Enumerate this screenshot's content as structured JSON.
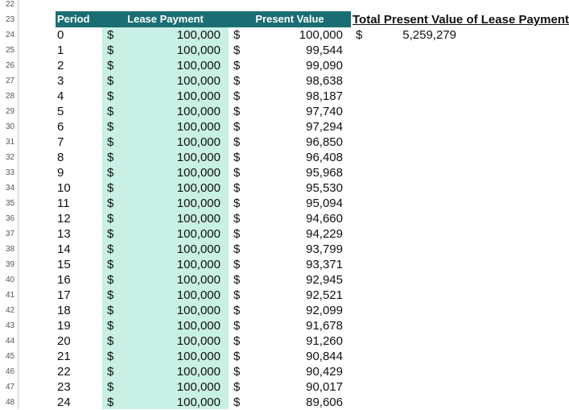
{
  "row_numbers": [
    "22",
    "23",
    "24",
    "25",
    "26",
    "27",
    "28",
    "29",
    "30",
    "31",
    "32",
    "33",
    "34",
    "35",
    "36",
    "37",
    "38",
    "39",
    "40",
    "41",
    "42",
    "43",
    "44",
    "45",
    "46",
    "47",
    "48"
  ],
  "headers": {
    "period": "Period",
    "lease": "Lease Payment",
    "pv": "Present Value"
  },
  "currency_symbol": "$",
  "rows": [
    {
      "period": "0",
      "lease": "100,000",
      "pv": "100,000"
    },
    {
      "period": "1",
      "lease": "100,000",
      "pv": "99,544"
    },
    {
      "period": "2",
      "lease": "100,000",
      "pv": "99,090"
    },
    {
      "period": "3",
      "lease": "100,000",
      "pv": "98,638"
    },
    {
      "period": "4",
      "lease": "100,000",
      "pv": "98,187"
    },
    {
      "period": "5",
      "lease": "100,000",
      "pv": "97,740"
    },
    {
      "period": "6",
      "lease": "100,000",
      "pv": "97,294"
    },
    {
      "period": "7",
      "lease": "100,000",
      "pv": "96,850"
    },
    {
      "period": "8",
      "lease": "100,000",
      "pv": "96,408"
    },
    {
      "period": "9",
      "lease": "100,000",
      "pv": "95,968"
    },
    {
      "period": "10",
      "lease": "100,000",
      "pv": "95,530"
    },
    {
      "period": "11",
      "lease": "100,000",
      "pv": "95,094"
    },
    {
      "period": "12",
      "lease": "100,000",
      "pv": "94,660"
    },
    {
      "period": "13",
      "lease": "100,000",
      "pv": "94,229"
    },
    {
      "period": "14",
      "lease": "100,000",
      "pv": "93,799"
    },
    {
      "period": "15",
      "lease": "100,000",
      "pv": "93,371"
    },
    {
      "period": "16",
      "lease": "100,000",
      "pv": "92,945"
    },
    {
      "period": "17",
      "lease": "100,000",
      "pv": "92,521"
    },
    {
      "period": "18",
      "lease": "100,000",
      "pv": "92,099"
    },
    {
      "period": "19",
      "lease": "100,000",
      "pv": "91,678"
    },
    {
      "period": "20",
      "lease": "100,000",
      "pv": "91,260"
    },
    {
      "period": "21",
      "lease": "100,000",
      "pv": "90,844"
    },
    {
      "period": "22",
      "lease": "100,000",
      "pv": "90,429"
    },
    {
      "period": "23",
      "lease": "100,000",
      "pv": "90,017"
    },
    {
      "period": "24",
      "lease": "100,000",
      "pv": "89,606"
    }
  ],
  "total": {
    "title": "Total Present Value of Lease Payments",
    "dollar": "$",
    "value": "5,259,279"
  },
  "colors": {
    "header_bg": "#1a6e73",
    "lease_bg": "#c8f0e4"
  }
}
